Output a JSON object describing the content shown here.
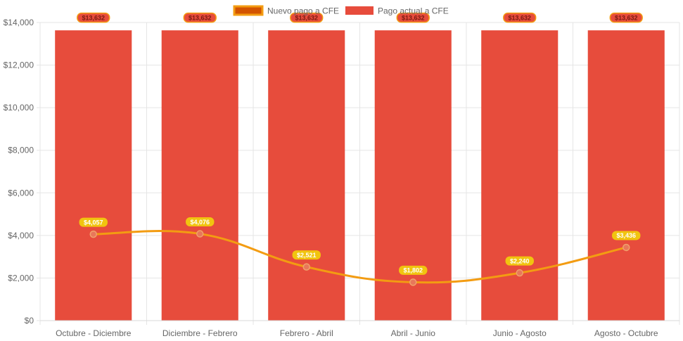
{
  "chart_data": {
    "type": "bar",
    "categories": [
      "Octubre - Diciembre",
      "Diciembre - Febrero",
      "Febrero - Abril",
      "Abril - Junio",
      "Junio - Agosto",
      "Agosto - Octubre"
    ],
    "series": [
      {
        "name": "Nuevo pago a CFE",
        "type": "line",
        "values": [
          4057,
          4076,
          2521,
          1802,
          2240,
          3436
        ],
        "labels": [
          "$4,057",
          "$4,076",
          "$2,521",
          "$1,802",
          "$2,240",
          "$3,436"
        ],
        "color": "#f39c12",
        "legend_fill": "#d35400",
        "label_bg": "#f1c40f",
        "label_color": "#ffffff"
      },
      {
        "name": "Pago actual a CFE",
        "type": "bar",
        "values": [
          13632,
          13632,
          13632,
          13632,
          13632,
          13632
        ],
        "labels": [
          "$13,632",
          "$13,632",
          "$13,632",
          "$13,632",
          "$13,632",
          "$13,632"
        ],
        "color": "#e74c3c",
        "label_bg": "#e74c3c",
        "label_border": "#f39c12",
        "label_color": "#7a1a12"
      }
    ],
    "y_ticks": [
      "$0",
      "$2,000",
      "$4,000",
      "$6,000",
      "$8,000",
      "$10,000",
      "$12,000",
      "$14,000"
    ],
    "ylim": [
      0,
      14000
    ],
    "y_step": 2000,
    "grid": true,
    "legend_position": "top-center",
    "grid_color": "#e5e5e5",
    "tick_color": "#666666"
  }
}
